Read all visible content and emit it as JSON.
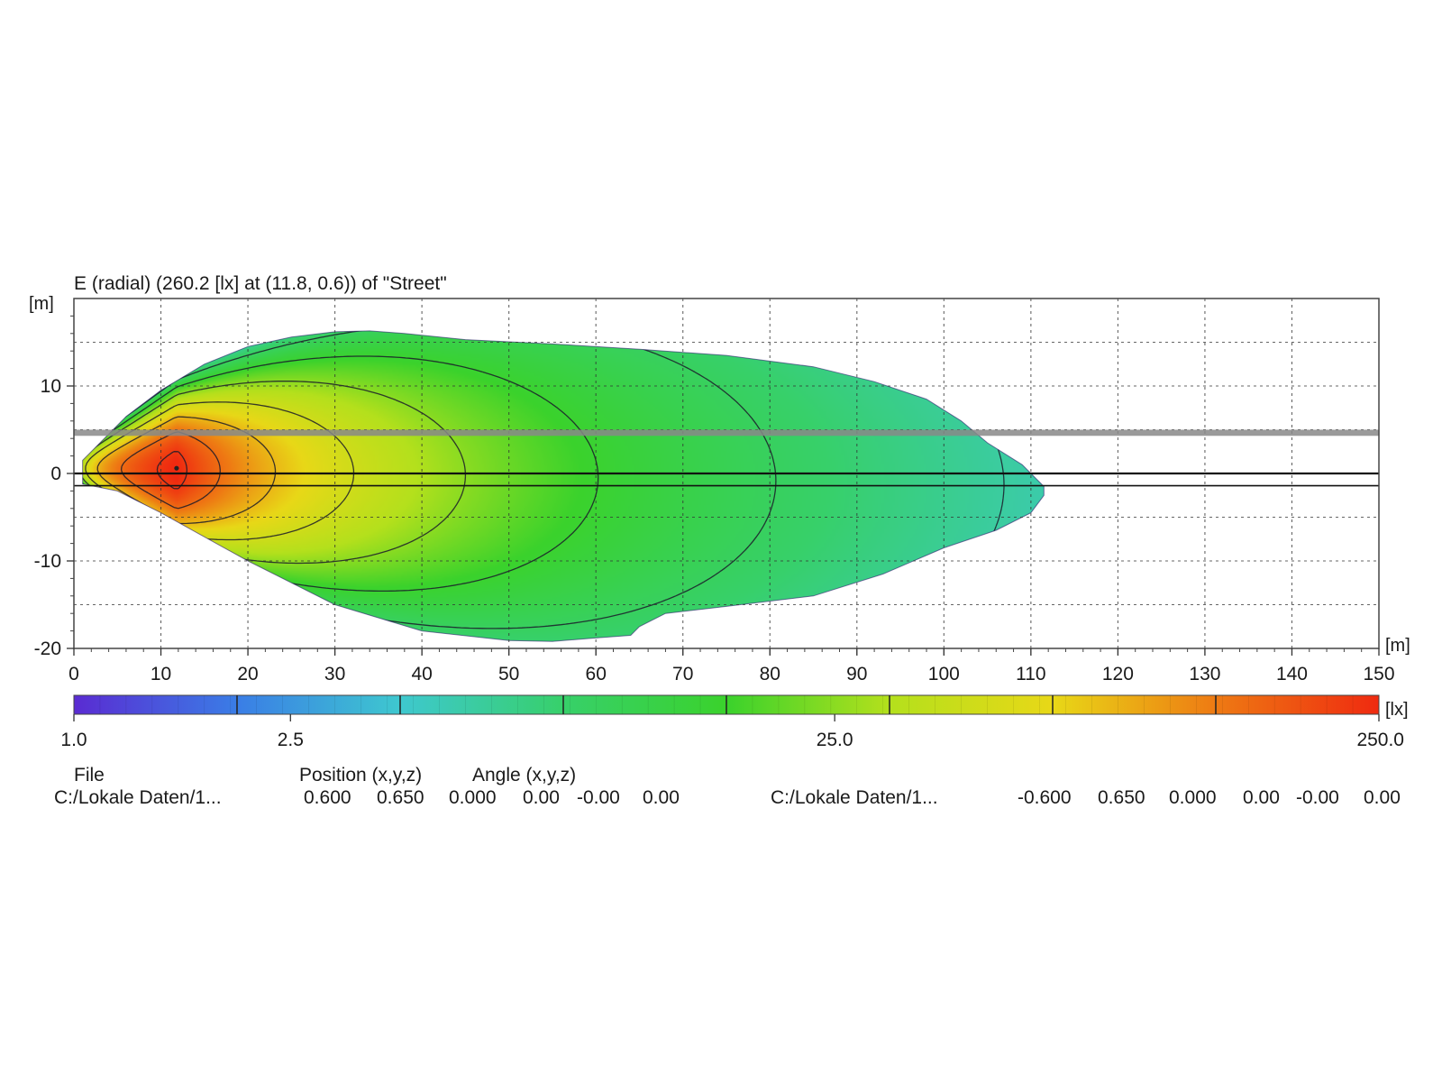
{
  "chart_data": {
    "type": "heatmap",
    "title": "E (radial) (260.2 [lx] at (11.8, 0.6)) of \"Street\"",
    "x_unit": "[m]",
    "y_unit": "[m]",
    "colorbar_unit": "[lx]",
    "xlim": [
      0,
      150
    ],
    "ylim": [
      -20,
      20
    ],
    "x_ticks": [
      0,
      10,
      20,
      30,
      40,
      50,
      60,
      70,
      80,
      90,
      100,
      110,
      120,
      130,
      140,
      150
    ],
    "y_ticks": [
      10,
      0,
      -10,
      -20
    ],
    "grid": true,
    "scale": "log",
    "colorbar_range": [
      1.0,
      250.0
    ],
    "colorbar_labels": [
      "1.0",
      "2.5",
      "25.0",
      "250.0"
    ],
    "colorbar_label_values": [
      1.0,
      2.5,
      25.0,
      250.0
    ],
    "max": {
      "value": 260.2,
      "x": 11.8,
      "y": 0.6
    },
    "isolines_lx": [
      1.2,
      2.0,
      3.3,
      5.5,
      9,
      15,
      25,
      45,
      80,
      140,
      220
    ],
    "upper_boundary": [
      [
        1,
        1.5
      ],
      [
        3,
        3.5
      ],
      [
        6,
        6.5
      ],
      [
        10,
        9.5
      ],
      [
        15,
        12.5
      ],
      [
        20,
        14.5
      ],
      [
        25,
        15.6
      ],
      [
        30,
        16.2
      ],
      [
        34,
        16.3
      ],
      [
        38,
        16.0
      ],
      [
        45,
        15.3
      ],
      [
        55,
        14.8
      ],
      [
        65,
        14.2
      ],
      [
        75,
        13.5
      ],
      [
        85,
        12.2
      ],
      [
        92,
        10.5
      ],
      [
        98,
        8.5
      ],
      [
        102,
        6
      ],
      [
        105,
        3.5
      ],
      [
        109,
        1
      ],
      [
        111.5,
        -1.5
      ]
    ],
    "lower_boundary": [
      [
        111.5,
        -2.5
      ],
      [
        110,
        -4.5
      ],
      [
        106,
        -6.5
      ],
      [
        100,
        -8.5
      ],
      [
        93,
        -11.5
      ],
      [
        85,
        -14
      ],
      [
        75,
        -15.2
      ],
      [
        68,
        -16
      ],
      [
        65,
        -17.5
      ],
      [
        64,
        -18.5
      ],
      [
        60,
        -18.8
      ],
      [
        55,
        -19.2
      ],
      [
        50,
        -19.1
      ],
      [
        40,
        -18
      ],
      [
        30,
        -15
      ],
      [
        20,
        -10
      ],
      [
        10,
        -4.5
      ],
      [
        5,
        -2
      ],
      [
        1,
        -1.2
      ]
    ],
    "color_stops": [
      "#5a2bd2",
      "#3a7de6",
      "#3ec8cf",
      "#37d06a",
      "#3ad22c",
      "#b4e01c",
      "#e8d817",
      "#ee7a13",
      "#ef2a10"
    ]
  },
  "info": {
    "header_file": "File",
    "header_position": "Position (x,y,z)",
    "header_angle": "Angle (x,y,z)",
    "row1": {
      "file": "C:/Lokale Daten/1...",
      "values": [
        "0.600",
        "0.650",
        "0.000",
        "0.00",
        "-0.00",
        "0.00"
      ]
    },
    "row2": {
      "file": "C:/Lokale Daten/1...",
      "values": [
        "-0.600",
        "0.650",
        "0.000",
        "0.00",
        "-0.00",
        "0.00"
      ]
    }
  }
}
